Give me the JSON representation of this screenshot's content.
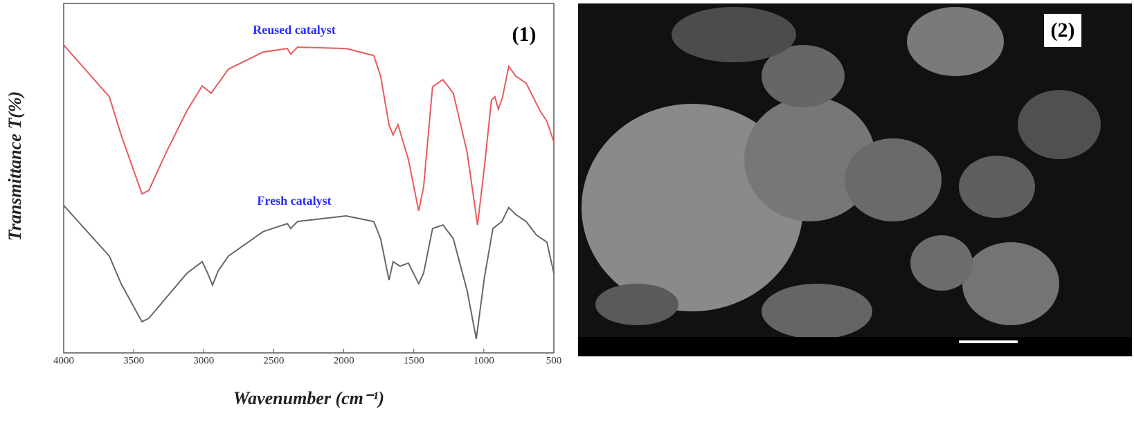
{
  "chart_data": {
    "type": "line",
    "x_label": "Wavenumber (cm⁻¹)",
    "y_label": "Transmittance T(%)",
    "panel_label": "(1)",
    "xlim": [
      4000,
      500
    ],
    "xticks": [
      4000,
      3500,
      3000,
      2500,
      2000,
      1500,
      1000,
      500
    ],
    "ylim": [
      0,
      100
    ],
    "series": [
      {
        "name": "Reused catalyst",
        "color": "#e8595c",
        "x": [
          4000,
          3674,
          3590,
          3441,
          3392,
          3268,
          3120,
          3011,
          2947,
          2824,
          2576,
          2403,
          2379,
          2330,
          1984,
          1786,
          1737,
          1677,
          1648,
          1613,
          1539,
          1465,
          1430,
          1366,
          1292,
          1218,
          1119,
          1045,
          995,
          946,
          921,
          896,
          866,
          822,
          772,
          698,
          599,
          550,
          500
        ],
        "values": [
          88.1,
          73.3,
          62.4,
          45.5,
          46.5,
          57.4,
          69.3,
          76.4,
          74.3,
          81.2,
          86.1,
          87.1,
          85.5,
          87.5,
          87.1,
          85.1,
          79.2,
          65.3,
          62.4,
          65.3,
          55.4,
          40.6,
          47.5,
          76.2,
          78.2,
          74.3,
          57.4,
          36.6,
          53.5,
          72.3,
          73.3,
          69.7,
          73.3,
          82.0,
          79.2,
          77.2,
          69.3,
          66.3,
          60.4
        ]
      },
      {
        "name": "Fresh catalyst",
        "color": "#666666",
        "x": [
          4000,
          3674,
          3590,
          3441,
          3392,
          3268,
          3120,
          3011,
          2972,
          2937,
          2898,
          2824,
          2576,
          2403,
          2379,
          2330,
          1984,
          1786,
          1737,
          1677,
          1648,
          1598,
          1539,
          1465,
          1430,
          1366,
          1292,
          1218,
          1119,
          1054,
          995,
          935,
          871,
          822,
          772,
          698,
          624,
          550,
          500
        ],
        "values": [
          42.2,
          27.7,
          19.8,
          8.9,
          9.9,
          15.8,
          22.8,
          26.1,
          22.8,
          19.4,
          23.4,
          27.7,
          34.7,
          37.0,
          35.6,
          37.6,
          39.2,
          37.6,
          32.7,
          20.8,
          26.1,
          24.8,
          25.7,
          19.8,
          22.8,
          35.6,
          36.6,
          32.7,
          17.8,
          4.0,
          21.8,
          35.6,
          37.6,
          41.6,
          39.6,
          37.6,
          33.7,
          31.7,
          22.8
        ]
      }
    ]
  },
  "image_panel": {
    "label": "(2)"
  }
}
